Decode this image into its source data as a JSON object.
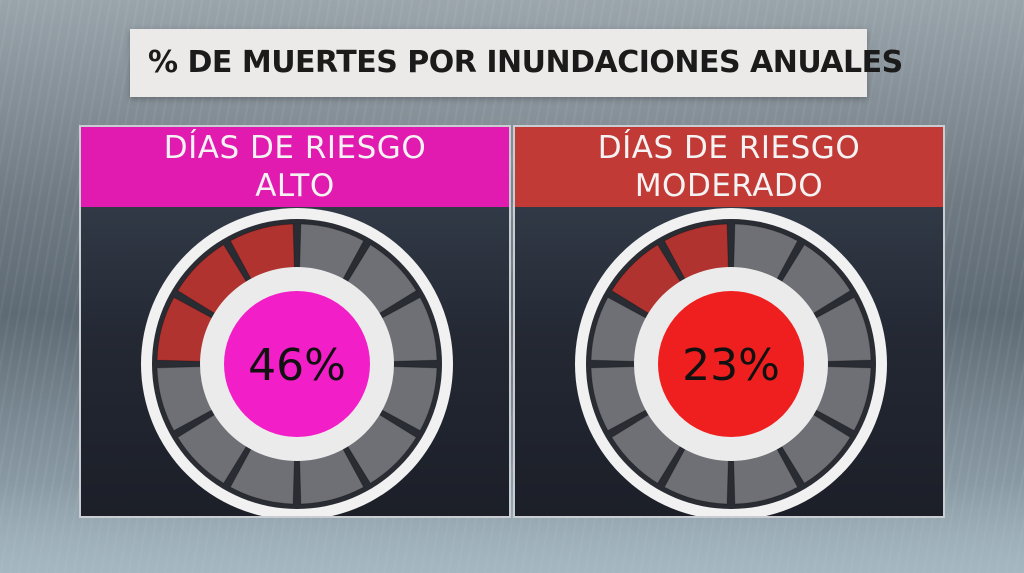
{
  "title": "% DE MUERTES POR INUNDACIONES ANUALES",
  "colors": {
    "pink": "#e11ab0",
    "red_header": "#c13a35",
    "red_center": "#ef1f1f",
    "segment_filled": "#b1332f",
    "segment_empty": "#6e7075"
  },
  "chart_data": [
    {
      "type": "gauge",
      "title_lines": [
        "DÍAS DE RIESGO",
        "ALTO"
      ],
      "value": 46,
      "label": "46%",
      "unit": "%",
      "segments_total": 12,
      "segments_filled": 3,
      "header_color": "#e11ab0",
      "center_color": "#f21ec8"
    },
    {
      "type": "gauge",
      "title_lines": [
        "DÍAS DE RIESGO",
        "MODERADO"
      ],
      "value": 23,
      "label": "23%",
      "unit": "%",
      "segments_total": 12,
      "segments_filled": 2,
      "header_color": "#c13a35",
      "center_color": "#ef1f1f"
    }
  ]
}
